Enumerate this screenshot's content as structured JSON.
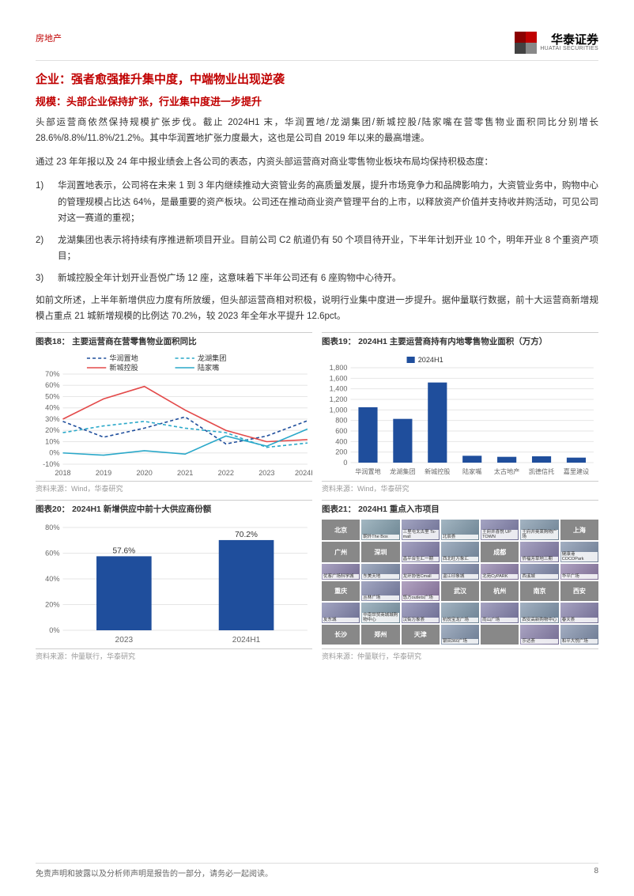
{
  "header": {
    "category": "房地产",
    "company_cn": "华泰证券",
    "company_en": "HUATAI SECURITIES"
  },
  "logo_colors": [
    "#8b0000",
    "#c00000",
    "#424242",
    "#888888"
  ],
  "title_h1": "企业：强者愈强推升集中度，中端物业出现逆袭",
  "title_h2": "规模：头部企业保持扩张，行业集中度进一步提升",
  "para1": "头部运营商依然保持规模扩张步伐。截止 2024H1 末，华润置地/龙湖集团/新城控股/陆家嘴在营零售物业面积同比分别增长 28.6%/8.8%/11.8%/21.2%。其中华润置地扩张力度最大，这也是公司自 2019 年以来的最高增速。",
  "para2": "通过 23 年年报以及 24 年中报业绩会上各公司的表态，内资头部运营商对商业零售物业板块布局均保持积极态度：",
  "list": [
    {
      "num": "1)",
      "text": "华润置地表示，公司将在未来 1 到 3 年内继续推动大资管业务的高质量发展，提升市场竞争力和品牌影响力，大资管业务中，购物中心的管理规模占比达 64%，是最重要的资产板块。公司还在推动商业资产管理平台的上市，以释放资产价值并支持收并购活动，可见公司对这一赛道的重视；"
    },
    {
      "num": "2)",
      "text": "龙湖集团也表示将持续有序推进新项目开业。目前公司 C2 航道仍有 50 个项目待开业，下半年计划开业 10 个，明年开业 8 个重资产项目；"
    },
    {
      "num": "3)",
      "text": "新城控股全年计划开业吾悦广场 12 座，这意味着下半年公司还有 6 座购物中心待开。"
    }
  ],
  "para3": "如前文所述，上半年新增供应力度有所放缓，但头部运营商相对积极，说明行业集中度进一步提升。据仲量联行数据，前十大运营商新增规模占重点 21 城新增规模的比例达 70.2%，较 2023 年全年水平提升 12.6pct。",
  "chart18": {
    "title": "图表18：  主要运营商在营零售物业面积同比",
    "source": "资料来源：Wind，华泰研究",
    "type": "line",
    "years": [
      "2018",
      "2019",
      "2020",
      "2021",
      "2022",
      "2023",
      "2024H1"
    ],
    "ylim": [
      -10,
      70
    ],
    "ytick_step": 10,
    "series": [
      {
        "name": "华润置地",
        "color": "#1f4e9c",
        "dash": "4,3",
        "values": [
          28,
          14,
          22,
          32,
          8,
          15,
          28.6
        ]
      },
      {
        "name": "龙湖集团",
        "color": "#2aa8c9",
        "dash": "4,3",
        "values": [
          18,
          24,
          28,
          22,
          18,
          5,
          8.8
        ]
      },
      {
        "name": "新城控股",
        "color": "#e34a4a",
        "dash": null,
        "values": [
          30,
          48,
          59,
          38,
          20,
          10,
          11.8
        ]
      },
      {
        "name": "陆家嘴",
        "color": "#2aa8c9",
        "dash": null,
        "values": [
          0,
          -2,
          2,
          -1,
          15,
          6,
          21.2
        ]
      }
    ],
    "grid_color": "#e6e6e6",
    "label_fontsize": 9
  },
  "chart19": {
    "title": "图表19：  2024H1 主要运营商持有内地零售物业面积（万方）",
    "source": "资料来源：Wind，华泰研究",
    "type": "bar",
    "legend": "2024H1",
    "categories": [
      "华润置地",
      "龙湖集团",
      "新城控股",
      "陆家嘴",
      "太古地产",
      "凯德信托",
      "嘉里建设"
    ],
    "values": [
      1050,
      830,
      1520,
      130,
      110,
      120,
      95
    ],
    "ylim": [
      0,
      1800
    ],
    "ytick_step": 200,
    "bar_color": "#1f4e9c",
    "grid_color": "#e6e6e6"
  },
  "chart20": {
    "title": "图表20：  2024H1 新增供应中前十大供应商份额",
    "source": "资料来源：仲量联行，华泰研究",
    "type": "bar",
    "categories": [
      "2023",
      "2024H1"
    ],
    "values": [
      57.6,
      70.2
    ],
    "value_labels": [
      "57.6%",
      "70.2%"
    ],
    "ylim": [
      0,
      80
    ],
    "ytick_step": 20,
    "bar_color": "#1f4e9c",
    "grid_color": "#e6e6e6"
  },
  "chart21": {
    "title": "图表21：  2024H1 重点入市项目",
    "source": "资料来源：仲量联行，华泰研究",
    "type": "infographic",
    "cities": [
      "北京",
      "上海",
      "广州",
      "深圳",
      "成都",
      "重庆",
      "武汉",
      "杭州",
      "南京",
      "西安",
      "长沙",
      "郑州",
      "天津"
    ],
    "projects": [
      "朝外The Box",
      "三里屯太古里 Ts-mall",
      "北辰荟",
      "王府井喜悦 UP TOWN",
      "王府井奥莱购物广场",
      "昌平合生汇一期",
      "西北旺万象汇",
      "侨福芳草地三期",
      "健康港COCOPark",
      "优客广场科学城",
      "东美天地",
      "龙环协信Cmall",
      "温江印象城",
      "北苑CyPARK",
      "西溪城",
      "华平广场",
      "丛林广场",
      "悠方outlets广场",
      "友东城",
      "中南世贸商城城购物中心",
      "汉街万象荟",
      "杭悦宝龙广场",
      "雨山广场",
      "西安高新购物中心",
      "春天荟",
      "银田360广场",
      "莎达荟",
      "和平大悦广场"
    ]
  },
  "footer": {
    "disclaimer": "免责声明和披露以及分析师声明是报告的一部分，请务必一起阅读。",
    "page": "8"
  }
}
